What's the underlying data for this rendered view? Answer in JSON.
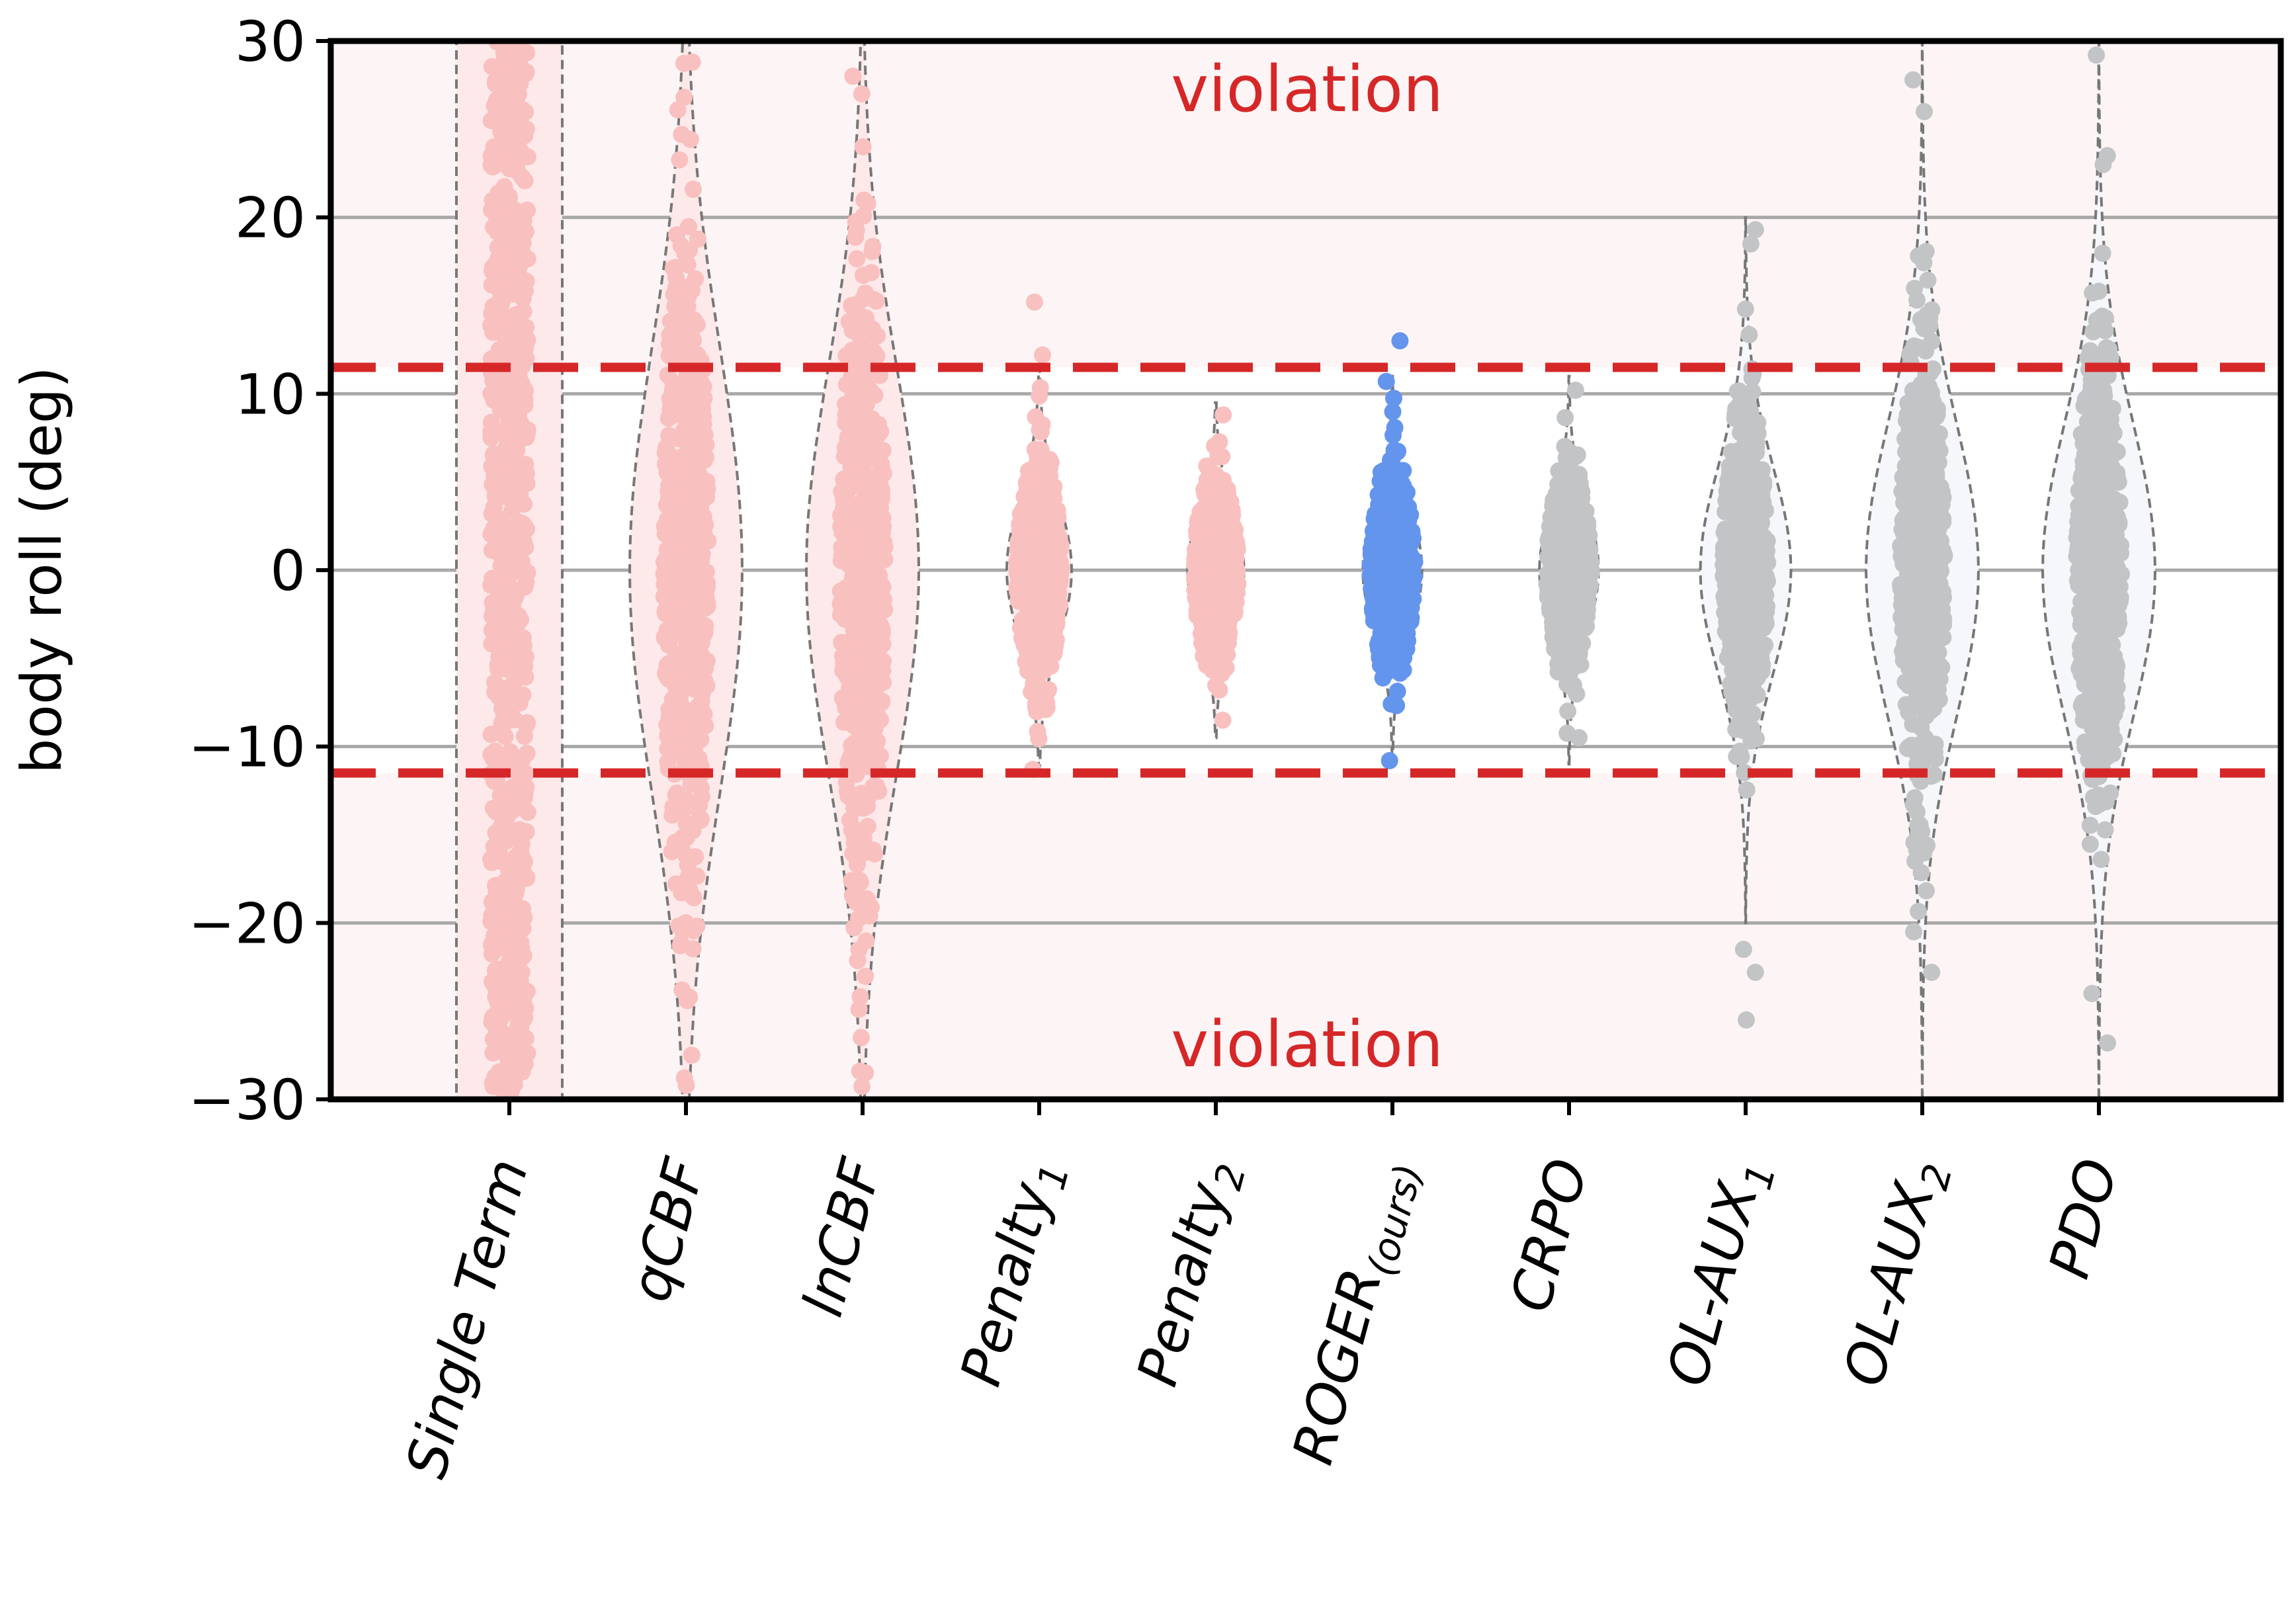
{
  "chart_data": {
    "type": "violin-strip",
    "title": "",
    "xlabel": "",
    "ylabel": "body roll (deg)",
    "ylim": [
      -30,
      30
    ],
    "yticks": [
      30,
      20,
      10,
      0,
      -10,
      -20,
      -30
    ],
    "ytick_labels": [
      "30",
      "20",
      "10",
      "0",
      "−10",
      "−20",
      "−30"
    ],
    "threshold": 11.5,
    "annotations": [
      "violation",
      "violation"
    ],
    "grid": "horizontal",
    "colors": {
      "violating": "#f9c0c0",
      "ours": "#6495ed",
      "baseline": "#c3c4c6",
      "threshold_line": "#d62728",
      "violation_bg": "#fdf5f5",
      "grid": "#a8a8a8"
    },
    "series": [
      {
        "name": "Single Term",
        "sub": "",
        "spread": 34.0,
        "max_abs": 30.0,
        "violin_max": 30.0,
        "uniform": true,
        "color_key": "violating",
        "outliers": []
      },
      {
        "name": "qCBF",
        "sub": "",
        "spread": 12.0,
        "max_abs": 30.0,
        "violin_max": 30.0,
        "uniform": false,
        "color_key": "violating",
        "outliers": [
          28.8,
          26.1,
          24.7,
          -27.5,
          -29.2
        ]
      },
      {
        "name": "lnCBF",
        "sub": "",
        "spread": 11.0,
        "max_abs": 30.0,
        "violin_max": 30.0,
        "uniform": false,
        "color_key": "violating",
        "outliers": [
          28.0,
          27.0,
          24.0,
          -26.5,
          -28.5
        ]
      },
      {
        "name": "Penalty",
        "sub": "1",
        "spread": 3.8,
        "max_abs": 11.5,
        "violin_max": 11.5,
        "uniform": false,
        "color_key": "violating",
        "outliers": [
          15.2,
          12.2,
          -11.3
        ]
      },
      {
        "name": "Penalty",
        "sub": "2",
        "spread": 3.2,
        "max_abs": 9.0,
        "violin_max": 9.5,
        "uniform": false,
        "color_key": "violating",
        "outliers": [
          8.8,
          -8.5
        ]
      },
      {
        "name": "ROGER",
        "sub": "(ours)",
        "spread": 3.4,
        "max_abs": 11.0,
        "violin_max": 11.0,
        "uniform": false,
        "color_key": "ours",
        "outliers": [
          13.0,
          10.7,
          -10.8
        ]
      },
      {
        "name": "CRPO",
        "sub": "",
        "spread": 3.4,
        "max_abs": 10.5,
        "violin_max": 11.0,
        "uniform": false,
        "color_key": "baseline",
        "outliers": [
          10.2,
          -9.5
        ]
      },
      {
        "name": "OL-AUX",
        "sub": "1",
        "spread": 5.6,
        "max_abs": 19.0,
        "violin_max": 20.0,
        "uniform": false,
        "color_key": "baseline",
        "outliers": [
          19.3,
          18.5,
          -21.5,
          -22.8,
          -25.5
        ]
      },
      {
        "name": "OL-AUX",
        "sub": "2",
        "spread": 8.0,
        "max_abs": 28.0,
        "violin_max": 30.0,
        "uniform": false,
        "color_key": "baseline",
        "outliers": [
          27.8,
          26.0,
          -20.5,
          -22.8
        ]
      },
      {
        "name": "PDO",
        "sub": "",
        "spread": 8.0,
        "max_abs": 29.0,
        "violin_max": 30.0,
        "uniform": false,
        "color_key": "baseline",
        "outliers": [
          29.2,
          23.5,
          23.0,
          -24.0,
          -26.8
        ]
      }
    ]
  }
}
